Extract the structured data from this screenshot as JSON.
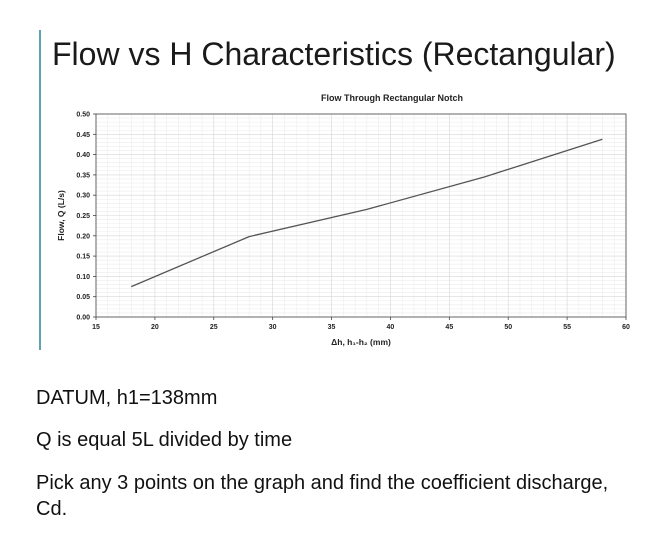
{
  "slide": {
    "title": "Flow vs H Characteristics (Rectangular)",
    "accent_color": "#5fa3b3"
  },
  "chart_data": {
    "type": "line",
    "title": "Flow Through Rectangular Notch",
    "xlabel": "Δh, h₁-h₂ (mm)",
    "ylabel": "Flow, Q (L/s)",
    "xlim": [
      15,
      60
    ],
    "ylim": [
      0,
      0.5
    ],
    "x_ticks": [
      "15",
      "20",
      "25",
      "30",
      "35",
      "40",
      "45",
      "50",
      "55",
      "60"
    ],
    "y_ticks": [
      "0.00",
      "0.05",
      "0.10",
      "0.15",
      "0.20",
      "0.25",
      "0.30",
      "0.35",
      "0.40",
      "0.45",
      "0.50"
    ],
    "grid": true,
    "series": [
      {
        "color": "#555555",
        "x": [
          18,
          28,
          38,
          48,
          58
        ],
        "y": [
          0.075,
          0.198,
          0.265,
          0.345,
          0.438
        ]
      }
    ]
  },
  "body": {
    "line1": "DATUM, h1=138mm",
    "line2": "Q is equal 5L divided by time",
    "line3": "Pick any 3 points on the graph and find the coefficient discharge, Cd."
  }
}
